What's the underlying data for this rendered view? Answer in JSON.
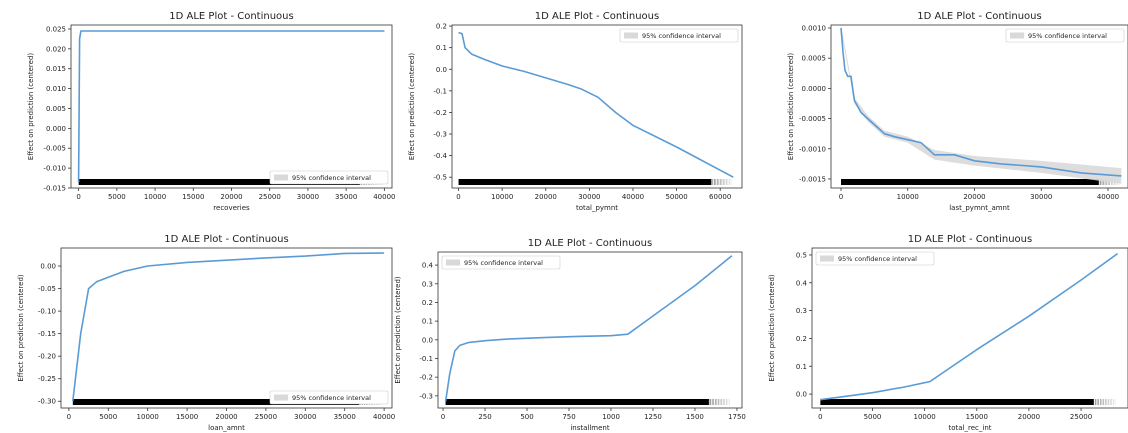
{
  "chart_data": [
    {
      "type": "line",
      "title": "1D ALE Plot - Continuous",
      "xlabel": "recoveries",
      "ylabel": "Effect on prediction (centered)",
      "xlim": [
        -1000,
        41000
      ],
      "ylim": [
        -0.015,
        0.026
      ],
      "xticks": [
        0,
        5000,
        10000,
        15000,
        20000,
        25000,
        30000,
        35000,
        40000
      ],
      "yticks": [
        -0.015,
        -0.01,
        -0.005,
        0.0,
        0.005,
        0.01,
        0.015,
        0.02,
        0.025
      ],
      "ytick_labels": [
        "-0.015",
        "-0.010",
        "-0.005",
        "0.000",
        "0.005",
        "0.010",
        "0.015",
        "0.020",
        "0.025"
      ],
      "legend": "95% confidence interval",
      "legend_position": "bottom-right",
      "series": [
        {
          "x": [
            0,
            120,
            300,
            2000,
            10000,
            20000,
            30000,
            40000
          ],
          "y": [
            -0.0135,
            0.0225,
            0.0245,
            0.0245,
            0.0245,
            0.0245,
            0.0245,
            0.0245
          ]
        }
      ],
      "band": null
    },
    {
      "type": "line",
      "title": "1D ALE Plot - Continuous",
      "xlabel": "total_pymnt",
      "ylabel": "Effect on prediction (centered)",
      "xlim": [
        -1500,
        65000
      ],
      "ylim": [
        -0.55,
        0.205
      ],
      "xticks": [
        0,
        10000,
        20000,
        30000,
        40000,
        50000,
        60000
      ],
      "yticks": [
        -0.5,
        -0.4,
        -0.3,
        -0.2,
        -0.1,
        0.0,
        0.1,
        0.2
      ],
      "ytick_labels": [
        "-0.5",
        "-0.4",
        "-0.3",
        "-0.2",
        "-0.1",
        "0.0",
        "0.1",
        "0.2"
      ],
      "legend": "95% confidence interval",
      "legend_position": "top-right",
      "series": [
        {
          "x": [
            0,
            800,
            1500,
            3000,
            6000,
            10000,
            15000,
            20000,
            25000,
            28000,
            32000,
            36000,
            40000,
            50000,
            63000
          ],
          "y": [
            0.17,
            0.165,
            0.1,
            0.07,
            0.045,
            0.015,
            -0.01,
            -0.04,
            -0.07,
            -0.09,
            -0.13,
            -0.2,
            -0.26,
            -0.36,
            -0.5
          ]
        }
      ],
      "band": null
    },
    {
      "type": "line",
      "title": "1D ALE Plot - Continuous",
      "xlabel": "last_pymnt_amnt",
      "ylabel": "Effect on prediction (centered)",
      "xlim": [
        -1500,
        43000
      ],
      "ylim": [
        -0.00165,
        0.00105
      ],
      "xticks": [
        0,
        10000,
        20000,
        30000,
        40000
      ],
      "yticks": [
        -0.0015,
        -0.001,
        -0.0005,
        0.0,
        0.0005,
        0.001
      ],
      "ytick_labels": [
        "-0.0015",
        "-0.0010",
        "-0.0005",
        "0.0000",
        "0.0005",
        "0.0010"
      ],
      "legend": "95% confidence interval",
      "legend_position": "top-right",
      "series": [
        {
          "x": [
            0,
            300,
            600,
            1000,
            1500,
            2000,
            3000,
            4000,
            5000,
            6500,
            8000,
            10000,
            12000,
            14000,
            17000,
            20000,
            24000,
            30000,
            36000,
            42000
          ],
          "y": [
            0.001,
            0.0006,
            0.0003,
            0.0002,
            0.0002,
            -0.0002,
            -0.0004,
            -0.0005,
            -0.0006,
            -0.00075,
            -0.0008,
            -0.00085,
            -0.0009,
            -0.0011,
            -0.0011,
            -0.0012,
            -0.00125,
            -0.0013,
            -0.0014,
            -0.00145
          ]
        }
      ],
      "band": {
        "x": [
          0,
          2000,
          4000,
          6500,
          10000,
          14000,
          20000,
          30000,
          42000
        ],
        "lower": [
          0.00095,
          -0.00025,
          -0.00055,
          -0.0008,
          -0.0009,
          -0.00118,
          -0.00128,
          -0.0014,
          -0.00158
        ],
        "upper": [
          0.00105,
          -0.00015,
          -0.00045,
          -0.0007,
          -0.0008,
          -0.00102,
          -0.00112,
          -0.0012,
          -0.00132
        ]
      }
    },
    {
      "type": "line",
      "title": "1D ALE Plot - Continuous",
      "xlabel": "loan_amnt",
      "ylabel": "Effect on prediction (centered)",
      "xlim": [
        -1000,
        41000
      ],
      "ylim": [
        -0.315,
        0.04
      ],
      "xticks": [
        0,
        5000,
        10000,
        15000,
        20000,
        25000,
        30000,
        35000,
        40000
      ],
      "yticks": [
        -0.3,
        -0.25,
        -0.2,
        -0.15,
        -0.1,
        -0.05,
        0.0
      ],
      "ytick_labels": [
        "-0.30",
        "-0.25",
        "-0.20",
        "-0.15",
        "-0.10",
        "-0.05",
        "0.00"
      ],
      "legend": "95% confidence interval",
      "legend_position": "bottom-right",
      "series": [
        {
          "x": [
            500,
            1500,
            2500,
            3500,
            5000,
            7000,
            10000,
            15000,
            20000,
            25000,
            30000,
            35000,
            40000
          ],
          "y": [
            -0.3,
            -0.15,
            -0.05,
            -0.035,
            -0.025,
            -0.012,
            0.0,
            0.008,
            0.013,
            0.018,
            0.022,
            0.028,
            0.029
          ]
        }
      ],
      "band": null
    },
    {
      "type": "line",
      "title": "1D ALE Plot - Continuous",
      "xlabel": "installment",
      "ylabel": "Effect on prediction (centered)",
      "xlim": [
        -30,
        1780
      ],
      "ylim": [
        -0.365,
        0.47
      ],
      "xticks": [
        0,
        250,
        500,
        750,
        1000,
        1250,
        1500,
        1750
      ],
      "yticks": [
        -0.3,
        -0.2,
        -0.1,
        0.0,
        0.1,
        0.2,
        0.3,
        0.4
      ],
      "ytick_labels": [
        "-0.3",
        "-0.2",
        "-0.1",
        "0.0",
        "0.1",
        "0.2",
        "0.3",
        "0.4"
      ],
      "legend": "95% confidence interval",
      "legend_position": "top-left",
      "series": [
        {
          "x": [
            15,
            40,
            70,
            100,
            150,
            250,
            400,
            600,
            800,
            1000,
            1100,
            1300,
            1500,
            1720
          ],
          "y": [
            -0.33,
            -0.18,
            -0.06,
            -0.03,
            -0.015,
            -0.005,
            0.005,
            0.012,
            0.018,
            0.022,
            0.03,
            0.16,
            0.29,
            0.45
          ]
        }
      ],
      "band": null
    },
    {
      "type": "line",
      "title": "1D ALE Plot - Continuous",
      "xlabel": "total_rec_int",
      "ylabel": "Effect on prediction (centered)",
      "xlim": [
        -800,
        29500
      ],
      "ylim": [
        -0.05,
        0.525
      ],
      "xticks": [
        0,
        5000,
        10000,
        15000,
        20000,
        25000
      ],
      "yticks": [
        0.0,
        0.1,
        0.2,
        0.3,
        0.4,
        0.5
      ],
      "ytick_labels": [
        "0.0",
        "0.1",
        "0.2",
        "0.3",
        "0.4",
        "0.5"
      ],
      "legend": "95% confidence interval",
      "legend_position": "top-left",
      "series": [
        {
          "x": [
            0,
            2000,
            5000,
            8000,
            10500,
            15000,
            20000,
            25000,
            28500
          ],
          "y": [
            -0.02,
            -0.01,
            0.005,
            0.025,
            0.045,
            0.16,
            0.28,
            0.41,
            0.505
          ]
        }
      ],
      "band": null
    }
  ]
}
